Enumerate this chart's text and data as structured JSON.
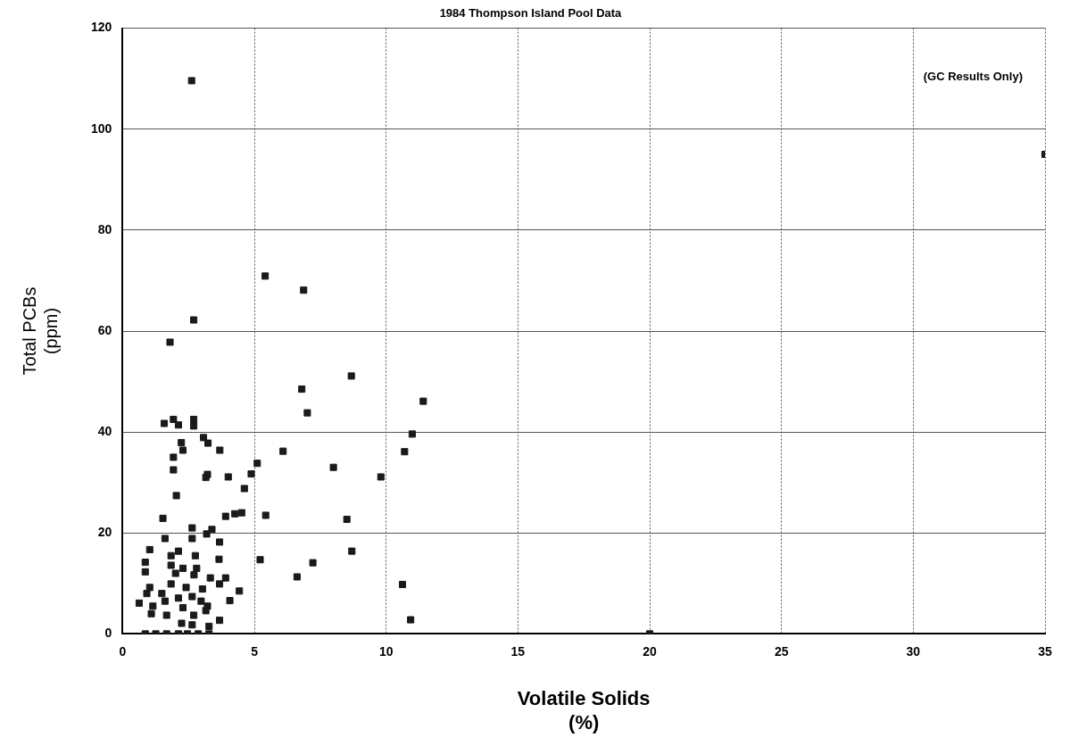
{
  "chart_data": {
    "type": "scatter",
    "title": "1984 Thompson Island Pool Data",
    "xlabel": "Volatile Solids\n(%)",
    "ylabel": "Total PCBs\n(ppm)",
    "annotations": [
      "(GC Results Only)"
    ],
    "x": [
      2.62,
      5.41,
      6.87,
      2.7,
      1.8,
      8.68,
      6.8,
      7.01,
      11.41,
      10.99,
      10.7,
      6.09,
      5.11,
      4.88,
      8.0,
      9.8,
      5.43,
      8.51,
      5.22,
      7.22,
      8.7,
      6.62,
      10.62,
      10.93,
      20,
      35,
      1.58,
      1.93,
      2.12,
      2.7,
      2.7,
      3.07,
      3.24,
      3.69,
      2.23,
      2.29,
      1.93,
      1.93,
      3.22,
      3.16,
      4.01,
      4.62,
      2.04,
      1.53,
      3.91,
      4.26,
      4.52,
      2.64,
      3.39,
      3.19,
      1.61,
      2.64,
      3.68,
      1.03,
      1.84,
      2.12,
      2.76,
      3.66,
      0.86,
      0.86,
      1.84,
      2.29,
      2.81,
      2.01,
      2.71,
      3.33,
      3.91,
      3.68,
      1.03,
      1.84,
      2.41,
      3.03,
      4.43,
      0.92,
      1.49,
      2.12,
      2.64,
      1.61,
      2.98,
      4.07,
      0.63,
      1.15,
      2.29,
      3.22,
      1.09,
      1.67,
      2.7,
      3.16,
      2.24,
      2.64,
      3.68,
      3.28,
      0.86,
      1.26,
      1.67,
      2.12,
      2.46,
      2.87,
      3.28
    ],
    "values": [
      109.6,
      70.9,
      68.1,
      62.2,
      57.8,
      51.1,
      48.5,
      43.8,
      46.1,
      39.6,
      36.1,
      36.2,
      33.8,
      31.7,
      33.0,
      31.1,
      23.5,
      22.7,
      14.7,
      14.1,
      16.4,
      11.3,
      9.8,
      2.8,
      0,
      95,
      41.7,
      42.5,
      41.4,
      42.5,
      41.2,
      38.9,
      37.8,
      36.4,
      37.9,
      36.4,
      35.0,
      32.5,
      31.6,
      31.0,
      31.1,
      28.8,
      27.4,
      22.9,
      23.3,
      23.8,
      24.0,
      21.0,
      20.7,
      19.8,
      18.9,
      18.9,
      18.2,
      16.7,
      15.5,
      16.4,
      15.5,
      14.8,
      14.2,
      12.3,
      13.6,
      13.0,
      13.0,
      12.0,
      11.7,
      11.1,
      11.1,
      9.9,
      9.2,
      9.9,
      9.2,
      8.9,
      8.5,
      8.0,
      8.0,
      7.1,
      7.4,
      6.5,
      6.5,
      6.6,
      6.1,
      5.5,
      5.2,
      5.5,
      4.0,
      3.7,
      3.7,
      4.6,
      2.1,
      1.8,
      2.7,
      1.5,
      0,
      0,
      0,
      0,
      0,
      0,
      0
    ],
    "color": "#1a1a1a",
    "marker": "square",
    "grid": true,
    "legend": false,
    "xlim": [
      0,
      35
    ],
    "xticks": [
      0,
      5,
      10,
      15,
      20,
      25,
      30,
      35
    ],
    "ylim": [
      0,
      120
    ],
    "yticks": [
      0,
      20,
      40,
      60,
      80,
      100,
      120
    ]
  }
}
